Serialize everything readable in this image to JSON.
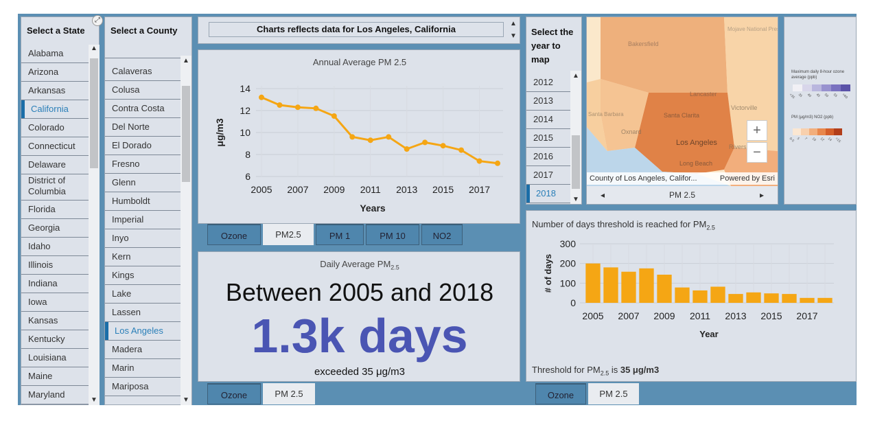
{
  "states": {
    "title": "Select a State",
    "items": [
      "Alabama",
      "Arizona",
      "Arkansas",
      "California",
      "Colorado",
      "Connecticut",
      "Delaware",
      "District of Columbia",
      "Florida",
      "Georgia",
      "Idaho",
      "Illinois",
      "Indiana",
      "Iowa",
      "Kansas",
      "Kentucky",
      "Louisiana",
      "Maine",
      "Maryland"
    ],
    "selected": "California"
  },
  "counties": {
    "title": "Select a County",
    "items": [
      "Calaveras",
      "Colusa",
      "Contra Costa",
      "Del Norte",
      "El Dorado",
      "Fresno",
      "Glenn",
      "Humboldt",
      "Imperial",
      "Inyo",
      "Kern",
      "Kings",
      "Lake",
      "Lassen",
      "Los Angeles",
      "Madera",
      "Marin",
      "Mariposa"
    ],
    "selected": "Los Angeles"
  },
  "banner": {
    "text": "Charts reflects data for Los Angeles, California"
  },
  "annual": {
    "title": "Annual Average PM 2.5",
    "tabs": [
      "Ozone",
      "PM2.5",
      "PM 1",
      "PM 10",
      "NO2"
    ],
    "active_tab": "PM2.5"
  },
  "daily": {
    "title_main": "Daily Average PM",
    "title_sub": "2.5",
    "headline": "Between 2005 and 2018",
    "big_value": "1.3k days",
    "caption": "exceeded 35 μg/m3",
    "tabs": [
      "Ozone",
      "PM 2.5"
    ],
    "active_tab": "PM 2.5",
    "accent": "#4a55b3"
  },
  "years": {
    "title": "Select the year to map",
    "items": [
      "2012",
      "2013",
      "2014",
      "2015",
      "2016",
      "2017",
      "2018"
    ],
    "selected": "2018"
  },
  "map": {
    "labels": {
      "bakersfield": "Bakersfield",
      "lancaster": "Lancaster",
      "santa_clarita": "Santa Clarita",
      "victorville": "Victorville",
      "oxnard": "Oxnard",
      "los_angeles": "Los Angeles",
      "long_beach": "Long Beach",
      "santa_barbara": "Santa Barbara",
      "mojave": "Mojave National Preserve",
      "riverside": "Rivers"
    },
    "attribution_left": "County of Los Angeles, Califor...",
    "attribution_right": "Powered by Esri",
    "zoom_in": "+",
    "zoom_out": "−",
    "nav_label": "PM 2.5"
  },
  "legend": {
    "ozone_title": "Maximum daily 8-hour ozone average (ppb)",
    "ozone_ticks": [
      "<35",
      "35",
      "40",
      "45",
      "50",
      "55",
      ">60"
    ],
    "ozone_colors": [
      "#f1f0f5",
      "#d8d6ea",
      "#b9b6de",
      "#9892cf",
      "#7a72c0",
      "#5a52a8"
    ],
    "pm_title": "PM (μg/m3) NO2 (ppb)",
    "pm_ticks": [
      "0-5",
      "5",
      "7",
      "10",
      "12",
      "14",
      ">15"
    ],
    "pm_colors": [
      "#fbe7d2",
      "#f8d0ad",
      "#f2ae7c",
      "#e8874c",
      "#d45f2a",
      "#b23e1a"
    ]
  },
  "threshold": {
    "title_main": "Number of days threshold is reached for PM",
    "title_sub": "2.5",
    "footer_main": "Threshold for PM",
    "footer_sub": "2.5",
    "footer_is": " is ",
    "footer_value": "35 μg/m3",
    "tabs": [
      "Ozone",
      "PM 2.5"
    ],
    "active_tab": "PM 2.5"
  },
  "chart_data": [
    {
      "type": "line",
      "title": "Annual Average PM 2.5",
      "xlabel": "Years",
      "ylabel": "μg/m3",
      "x": [
        2005,
        2006,
        2007,
        2008,
        2009,
        2010,
        2011,
        2012,
        2013,
        2014,
        2015,
        2016,
        2017,
        2018
      ],
      "values": [
        13.2,
        12.5,
        12.3,
        12.2,
        11.5,
        9.6,
        9.3,
        9.6,
        8.5,
        9.1,
        8.8,
        8.4,
        7.4,
        7.2
      ],
      "ylim": [
        6,
        14
      ],
      "yticks": [
        6,
        8,
        10,
        12,
        14
      ],
      "xticks": [
        2005,
        2007,
        2009,
        2011,
        2013,
        2015,
        2017
      ],
      "color": "#f5a614",
      "grid": true
    },
    {
      "type": "bar",
      "xlabel": "Year",
      "ylabel": "# of days",
      "categories": [
        "2005",
        "2006",
        "2007",
        "2008",
        "2009",
        "2010",
        "2011",
        "2012",
        "2013",
        "2014",
        "2015",
        "2016",
        "2017",
        "2018"
      ],
      "values": [
        200,
        180,
        158,
        175,
        143,
        78,
        63,
        82,
        45,
        53,
        48,
        45,
        25,
        25
      ],
      "ylim": [
        0,
        300
      ],
      "yticks": [
        0,
        100,
        200,
        300
      ],
      "xticks": [
        "2005",
        "2007",
        "2009",
        "2011",
        "2013",
        "2015",
        "2017"
      ],
      "color": "#f5a614",
      "grid": true
    }
  ]
}
